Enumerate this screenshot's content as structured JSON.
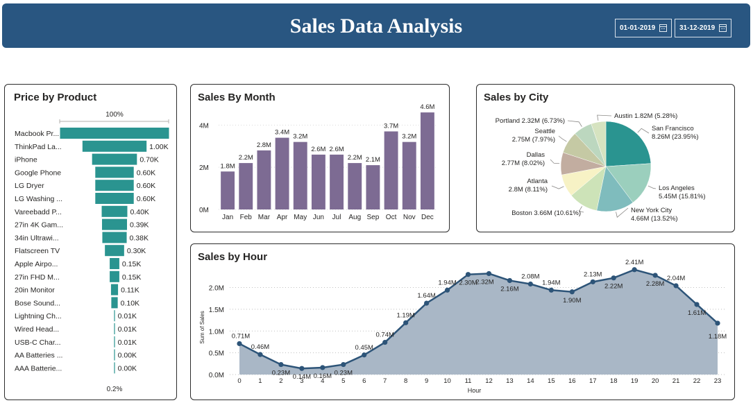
{
  "header": {
    "title": "Sales Data Analysis",
    "start_date": "01-01-2019",
    "end_date": "31-12-2019",
    "background_color": "#295681"
  },
  "product_card": {
    "title": "Price by Product",
    "top_label": "100%",
    "bottom_label": "0.2%"
  },
  "month_card": {
    "title": "Sales By Month"
  },
  "city_card": {
    "title": "Sales by City"
  },
  "hour_card": {
    "title": "Sales by Hour"
  },
  "chart_data": [
    {
      "type": "bar",
      "orientation": "horizontal-funnel",
      "title": "Price by Product",
      "categories": [
        "Macbook Pr...",
        "ThinkPad La...",
        "iPhone",
        "Google Phone",
        "LG Dryer",
        "LG Washing ...",
        "Vareebadd P...",
        "27in 4K Gam...",
        "34in Ultrawi...",
        "Flatscreen TV",
        "Apple Airpo...",
        "27in FHD M...",
        "20in Monitor",
        "Bose Sound...",
        "Lightning Ch...",
        "Wired Head...",
        "USB-C Char...",
        "AA Batteries ...",
        "AAA Batterie..."
      ],
      "values": [
        1.7,
        1.0,
        0.7,
        0.6,
        0.6,
        0.6,
        0.4,
        0.39,
        0.38,
        0.3,
        0.15,
        0.15,
        0.11,
        0.1,
        0.01,
        0.01,
        0.01,
        0.004,
        0.003
      ],
      "value_labels": [
        "",
        "1.00K",
        "0.70K",
        "0.60K",
        "0.60K",
        "0.60K",
        "0.40K",
        "0.39K",
        "0.38K",
        "0.30K",
        "0.15K",
        "0.15K",
        "0.11K",
        "0.10K",
        "0.01K",
        "0.01K",
        "0.01K",
        "0.00K",
        "0.00K"
      ],
      "color": "#2a9490"
    },
    {
      "type": "bar",
      "title": "Sales By Month",
      "categories": [
        "Jan",
        "Feb",
        "Mar",
        "Apr",
        "May",
        "Jun",
        "Jul",
        "Aug",
        "Sep",
        "Oct",
        "Nov",
        "Dec"
      ],
      "values": [
        1.8,
        2.2,
        2.8,
        3.4,
        3.2,
        2.6,
        2.6,
        2.2,
        2.1,
        3.7,
        3.2,
        4.6
      ],
      "value_labels": [
        "1.8M",
        "2.2M",
        "2.8M",
        "3.4M",
        "3.2M",
        "2.6M",
        "2.6M",
        "2.2M",
        "2.1M",
        "3.7M",
        "3.2M",
        "4.6M"
      ],
      "yticks": [
        "0M",
        "2M",
        "4M"
      ],
      "ytick_values": [
        0,
        2,
        4
      ],
      "ylim": [
        0,
        4.8
      ],
      "color": "#7d6b93"
    },
    {
      "type": "pie",
      "title": "Sales by City",
      "slices": [
        {
          "city": "San Francisco",
          "value": "8.26M (23.95%)",
          "share": 23.95,
          "color": "#2a9490"
        },
        {
          "city": "Los Angeles",
          "value": "5.45M (15.81%)",
          "share": 15.81,
          "color": "#9bcfbd"
        },
        {
          "city": "New York City",
          "value": "4.66M (13.52%)",
          "share": 13.52,
          "color": "#7fbcbd"
        },
        {
          "city": "Boston",
          "value": "3.66M (10.61%)",
          "share": 10.61,
          "color": "#cde3b8"
        },
        {
          "city": "Atlanta",
          "value": "2.8M (8.11%)",
          "share": 8.11,
          "color": "#f7f2c5"
        },
        {
          "city": "Dallas",
          "value": "2.77M (8.02%)",
          "share": 8.02,
          "color": "#c2ada0"
        },
        {
          "city": "Seattle",
          "value": "2.75M (7.97%)",
          "share": 7.97,
          "color": "#c5c9a4"
        },
        {
          "city": "Portland",
          "value": "2.32M (6.73%)",
          "share": 6.73,
          "color": "#bcd7bf"
        },
        {
          "city": "Austin",
          "value": "1.82M (5.28%)",
          "share": 5.28,
          "color": "#d6e3c0"
        }
      ]
    },
    {
      "type": "area",
      "title": "Sales by Hour",
      "xlabel": "Hour",
      "ylabel": "Sum of Sales",
      "x": [
        0,
        1,
        2,
        3,
        4,
        5,
        6,
        7,
        8,
        9,
        10,
        11,
        12,
        13,
        14,
        15,
        16,
        17,
        18,
        19,
        20,
        21,
        22,
        23
      ],
      "values": [
        0.71,
        0.46,
        0.23,
        0.14,
        0.16,
        0.23,
        0.45,
        0.74,
        1.19,
        1.64,
        1.94,
        2.3,
        2.32,
        2.16,
        2.08,
        1.94,
        1.9,
        2.13,
        2.22,
        2.41,
        2.28,
        2.04,
        1.61,
        1.18
      ],
      "value_labels": [
        "0.71M",
        "0.46M",
        "0.23M",
        "0.14M",
        "0.16M",
        "0.23M",
        "0.45M",
        "0.74M",
        "1.19M",
        "1.64M",
        "1.94M",
        "2.30M",
        "2.32M",
        "2.16M",
        "2.08M",
        "1.94M",
        "1.90M",
        "2.13M",
        "2.22M",
        "2.41M",
        "2.28M",
        "2.04M",
        "1.61M",
        "1.18M"
      ],
      "yticks": [
        "0.0M",
        "0.5M",
        "1.0M",
        "1.5M",
        "2.0M"
      ],
      "ytick_values": [
        0,
        0.5,
        1.0,
        1.5,
        2.0
      ],
      "ylim": [
        0,
        2.55
      ],
      "line_color": "#2d5478",
      "fill_color": "#a9b7c6"
    }
  ]
}
